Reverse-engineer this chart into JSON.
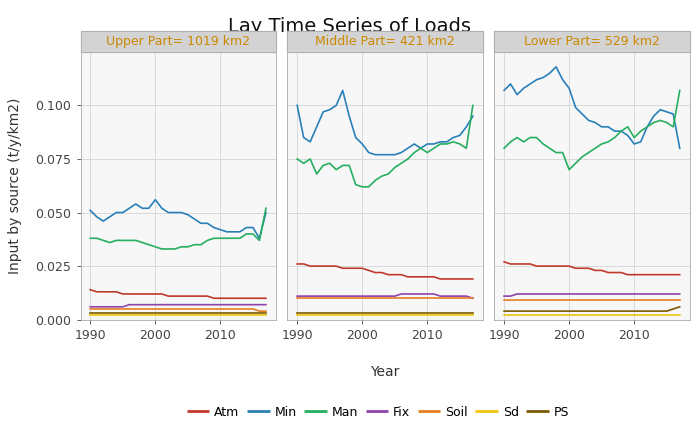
{
  "title": "Lay Time Series of Loads",
  "ylabel": "Input by source (t/y/km2)",
  "xlabel": "Year",
  "panel_titles": [
    "Upper Part= 1019 km2",
    "Middle Part= 421 km2",
    "Lower Part= 529 km2"
  ],
  "years": [
    1990,
    1991,
    1992,
    1993,
    1994,
    1995,
    1996,
    1997,
    1998,
    1999,
    2000,
    2001,
    2002,
    2003,
    2004,
    2005,
    2006,
    2007,
    2008,
    2009,
    2010,
    2011,
    2012,
    2013,
    2014,
    2015,
    2016,
    2017
  ],
  "series": {
    "Atm": {
      "color": "#C0392B",
      "upper": [
        0.014,
        0.013,
        0.013,
        0.013,
        0.013,
        0.012,
        0.012,
        0.012,
        0.012,
        0.012,
        0.012,
        0.012,
        0.011,
        0.011,
        0.011,
        0.011,
        0.011,
        0.011,
        0.011,
        0.01,
        0.01,
        0.01,
        0.01,
        0.01,
        0.01,
        0.01,
        0.01,
        0.01
      ],
      "middle": [
        0.026,
        0.026,
        0.025,
        0.025,
        0.025,
        0.025,
        0.025,
        0.024,
        0.024,
        0.024,
        0.024,
        0.023,
        0.022,
        0.022,
        0.021,
        0.021,
        0.021,
        0.02,
        0.02,
        0.02,
        0.02,
        0.02,
        0.019,
        0.019,
        0.019,
        0.019,
        0.019,
        0.019
      ],
      "lower": [
        0.027,
        0.026,
        0.026,
        0.026,
        0.026,
        0.025,
        0.025,
        0.025,
        0.025,
        0.025,
        0.025,
        0.024,
        0.024,
        0.024,
        0.023,
        0.023,
        0.022,
        0.022,
        0.022,
        0.021,
        0.021,
        0.021,
        0.021,
        0.021,
        0.021,
        0.021,
        0.021,
        0.021
      ]
    },
    "Min": {
      "color": "#2980B9",
      "upper": [
        0.051,
        0.048,
        0.046,
        0.048,
        0.05,
        0.05,
        0.052,
        0.054,
        0.052,
        0.052,
        0.056,
        0.052,
        0.05,
        0.05,
        0.05,
        0.049,
        0.047,
        0.045,
        0.045,
        0.043,
        0.042,
        0.041,
        0.041,
        0.041,
        0.043,
        0.043,
        0.038,
        0.05
      ],
      "middle": [
        0.1,
        0.085,
        0.083,
        0.09,
        0.097,
        0.098,
        0.1,
        0.107,
        0.095,
        0.085,
        0.082,
        0.078,
        0.077,
        0.077,
        0.077,
        0.077,
        0.078,
        0.08,
        0.082,
        0.08,
        0.082,
        0.082,
        0.083,
        0.083,
        0.085,
        0.086,
        0.09,
        0.095
      ],
      "lower": [
        0.107,
        0.11,
        0.105,
        0.108,
        0.11,
        0.112,
        0.113,
        0.115,
        0.118,
        0.112,
        0.108,
        0.099,
        0.096,
        0.093,
        0.092,
        0.09,
        0.09,
        0.088,
        0.088,
        0.086,
        0.082,
        0.083,
        0.09,
        0.095,
        0.098,
        0.097,
        0.096,
        0.08
      ]
    },
    "Man": {
      "color": "#27AE60",
      "upper": [
        0.038,
        0.038,
        0.037,
        0.036,
        0.037,
        0.037,
        0.037,
        0.037,
        0.036,
        0.035,
        0.034,
        0.033,
        0.033,
        0.033,
        0.034,
        0.034,
        0.035,
        0.035,
        0.037,
        0.038,
        0.038,
        0.038,
        0.038,
        0.038,
        0.04,
        0.04,
        0.037,
        0.052
      ],
      "middle": [
        0.075,
        0.073,
        0.075,
        0.068,
        0.072,
        0.073,
        0.07,
        0.072,
        0.072,
        0.063,
        0.062,
        0.062,
        0.065,
        0.067,
        0.068,
        0.071,
        0.073,
        0.075,
        0.078,
        0.08,
        0.078,
        0.08,
        0.082,
        0.082,
        0.083,
        0.082,
        0.08,
        0.1
      ],
      "lower": [
        0.08,
        0.083,
        0.085,
        0.083,
        0.085,
        0.085,
        0.082,
        0.08,
        0.078,
        0.078,
        0.07,
        0.073,
        0.076,
        0.078,
        0.08,
        0.082,
        0.083,
        0.085,
        0.088,
        0.09,
        0.085,
        0.088,
        0.09,
        0.092,
        0.093,
        0.092,
        0.09,
        0.107
      ]
    },
    "Fix": {
      "color": "#8E44AD",
      "upper": [
        0.006,
        0.006,
        0.006,
        0.006,
        0.006,
        0.006,
        0.007,
        0.007,
        0.007,
        0.007,
        0.007,
        0.007,
        0.007,
        0.007,
        0.007,
        0.007,
        0.007,
        0.007,
        0.007,
        0.007,
        0.007,
        0.007,
        0.007,
        0.007,
        0.007,
        0.007,
        0.007,
        0.007
      ],
      "middle": [
        0.011,
        0.011,
        0.011,
        0.011,
        0.011,
        0.011,
        0.011,
        0.011,
        0.011,
        0.011,
        0.011,
        0.011,
        0.011,
        0.011,
        0.011,
        0.011,
        0.012,
        0.012,
        0.012,
        0.012,
        0.012,
        0.012,
        0.011,
        0.011,
        0.011,
        0.011,
        0.011,
        0.01
      ],
      "lower": [
        0.011,
        0.011,
        0.012,
        0.012,
        0.012,
        0.012,
        0.012,
        0.012,
        0.012,
        0.012,
        0.012,
        0.012,
        0.012,
        0.012,
        0.012,
        0.012,
        0.012,
        0.012,
        0.012,
        0.012,
        0.012,
        0.012,
        0.012,
        0.012,
        0.012,
        0.012,
        0.012,
        0.012
      ]
    },
    "Soil": {
      "color": "#E67E22",
      "upper": [
        0.005,
        0.005,
        0.005,
        0.005,
        0.005,
        0.005,
        0.005,
        0.005,
        0.005,
        0.005,
        0.005,
        0.005,
        0.005,
        0.005,
        0.005,
        0.005,
        0.005,
        0.005,
        0.005,
        0.005,
        0.005,
        0.005,
        0.005,
        0.005,
        0.005,
        0.005,
        0.004,
        0.004
      ],
      "middle": [
        0.01,
        0.01,
        0.01,
        0.01,
        0.01,
        0.01,
        0.01,
        0.01,
        0.01,
        0.01,
        0.01,
        0.01,
        0.01,
        0.01,
        0.01,
        0.01,
        0.01,
        0.01,
        0.01,
        0.01,
        0.01,
        0.01,
        0.01,
        0.01,
        0.01,
        0.01,
        0.01,
        0.01
      ],
      "lower": [
        0.009,
        0.009,
        0.009,
        0.009,
        0.009,
        0.009,
        0.009,
        0.009,
        0.009,
        0.009,
        0.009,
        0.009,
        0.009,
        0.009,
        0.009,
        0.009,
        0.009,
        0.009,
        0.009,
        0.009,
        0.009,
        0.009,
        0.009,
        0.009,
        0.009,
        0.009,
        0.009,
        0.009
      ]
    },
    "Sd": {
      "color": "#F1C40F",
      "upper": [
        0.002,
        0.002,
        0.002,
        0.002,
        0.002,
        0.002,
        0.002,
        0.002,
        0.002,
        0.002,
        0.002,
        0.002,
        0.002,
        0.002,
        0.002,
        0.002,
        0.002,
        0.002,
        0.002,
        0.002,
        0.002,
        0.002,
        0.002,
        0.002,
        0.002,
        0.002,
        0.002,
        0.002
      ],
      "middle": [
        0.002,
        0.002,
        0.002,
        0.002,
        0.002,
        0.002,
        0.002,
        0.002,
        0.002,
        0.002,
        0.002,
        0.002,
        0.002,
        0.002,
        0.002,
        0.002,
        0.002,
        0.002,
        0.002,
        0.002,
        0.002,
        0.002,
        0.002,
        0.002,
        0.002,
        0.002,
        0.002,
        0.002
      ],
      "lower": [
        0.002,
        0.002,
        0.002,
        0.002,
        0.002,
        0.002,
        0.002,
        0.002,
        0.002,
        0.002,
        0.002,
        0.002,
        0.002,
        0.002,
        0.002,
        0.002,
        0.002,
        0.002,
        0.002,
        0.002,
        0.002,
        0.002,
        0.002,
        0.002,
        0.002,
        0.002,
        0.002,
        0.002
      ]
    },
    "PS": {
      "color": "#7B5B00",
      "upper": [
        0.003,
        0.003,
        0.003,
        0.003,
        0.003,
        0.003,
        0.003,
        0.003,
        0.003,
        0.003,
        0.003,
        0.003,
        0.003,
        0.003,
        0.003,
        0.003,
        0.003,
        0.003,
        0.003,
        0.003,
        0.003,
        0.003,
        0.003,
        0.003,
        0.003,
        0.003,
        0.003,
        0.003
      ],
      "middle": [
        0.003,
        0.003,
        0.003,
        0.003,
        0.003,
        0.003,
        0.003,
        0.003,
        0.003,
        0.003,
        0.003,
        0.003,
        0.003,
        0.003,
        0.003,
        0.003,
        0.003,
        0.003,
        0.003,
        0.003,
        0.003,
        0.003,
        0.003,
        0.003,
        0.003,
        0.003,
        0.003,
        0.003
      ],
      "lower": [
        0.004,
        0.004,
        0.004,
        0.004,
        0.004,
        0.004,
        0.004,
        0.004,
        0.004,
        0.004,
        0.004,
        0.004,
        0.004,
        0.004,
        0.004,
        0.004,
        0.004,
        0.004,
        0.004,
        0.004,
        0.004,
        0.004,
        0.004,
        0.004,
        0.004,
        0.004,
        0.005,
        0.006
      ]
    }
  },
  "panel_bg": "#f7f7f7",
  "plot_bg": "#ffffff",
  "grid_color": "#d9d9d9",
  "facet_bg": "#d3d3d3",
  "facet_text_color": "#CC8800",
  "ylim": [
    0,
    0.125
  ],
  "yticks": [
    0.0,
    0.025,
    0.05,
    0.075,
    0.1
  ],
  "xticks": [
    1990,
    2000,
    2010
  ],
  "legend_order": [
    "Atm",
    "Min",
    "Man",
    "Fix",
    "Soil",
    "Sd",
    "PS"
  ],
  "title_fontsize": 14,
  "axis_label_fontsize": 10,
  "tick_fontsize": 9,
  "facet_fontsize": 9,
  "legend_fontsize": 9
}
